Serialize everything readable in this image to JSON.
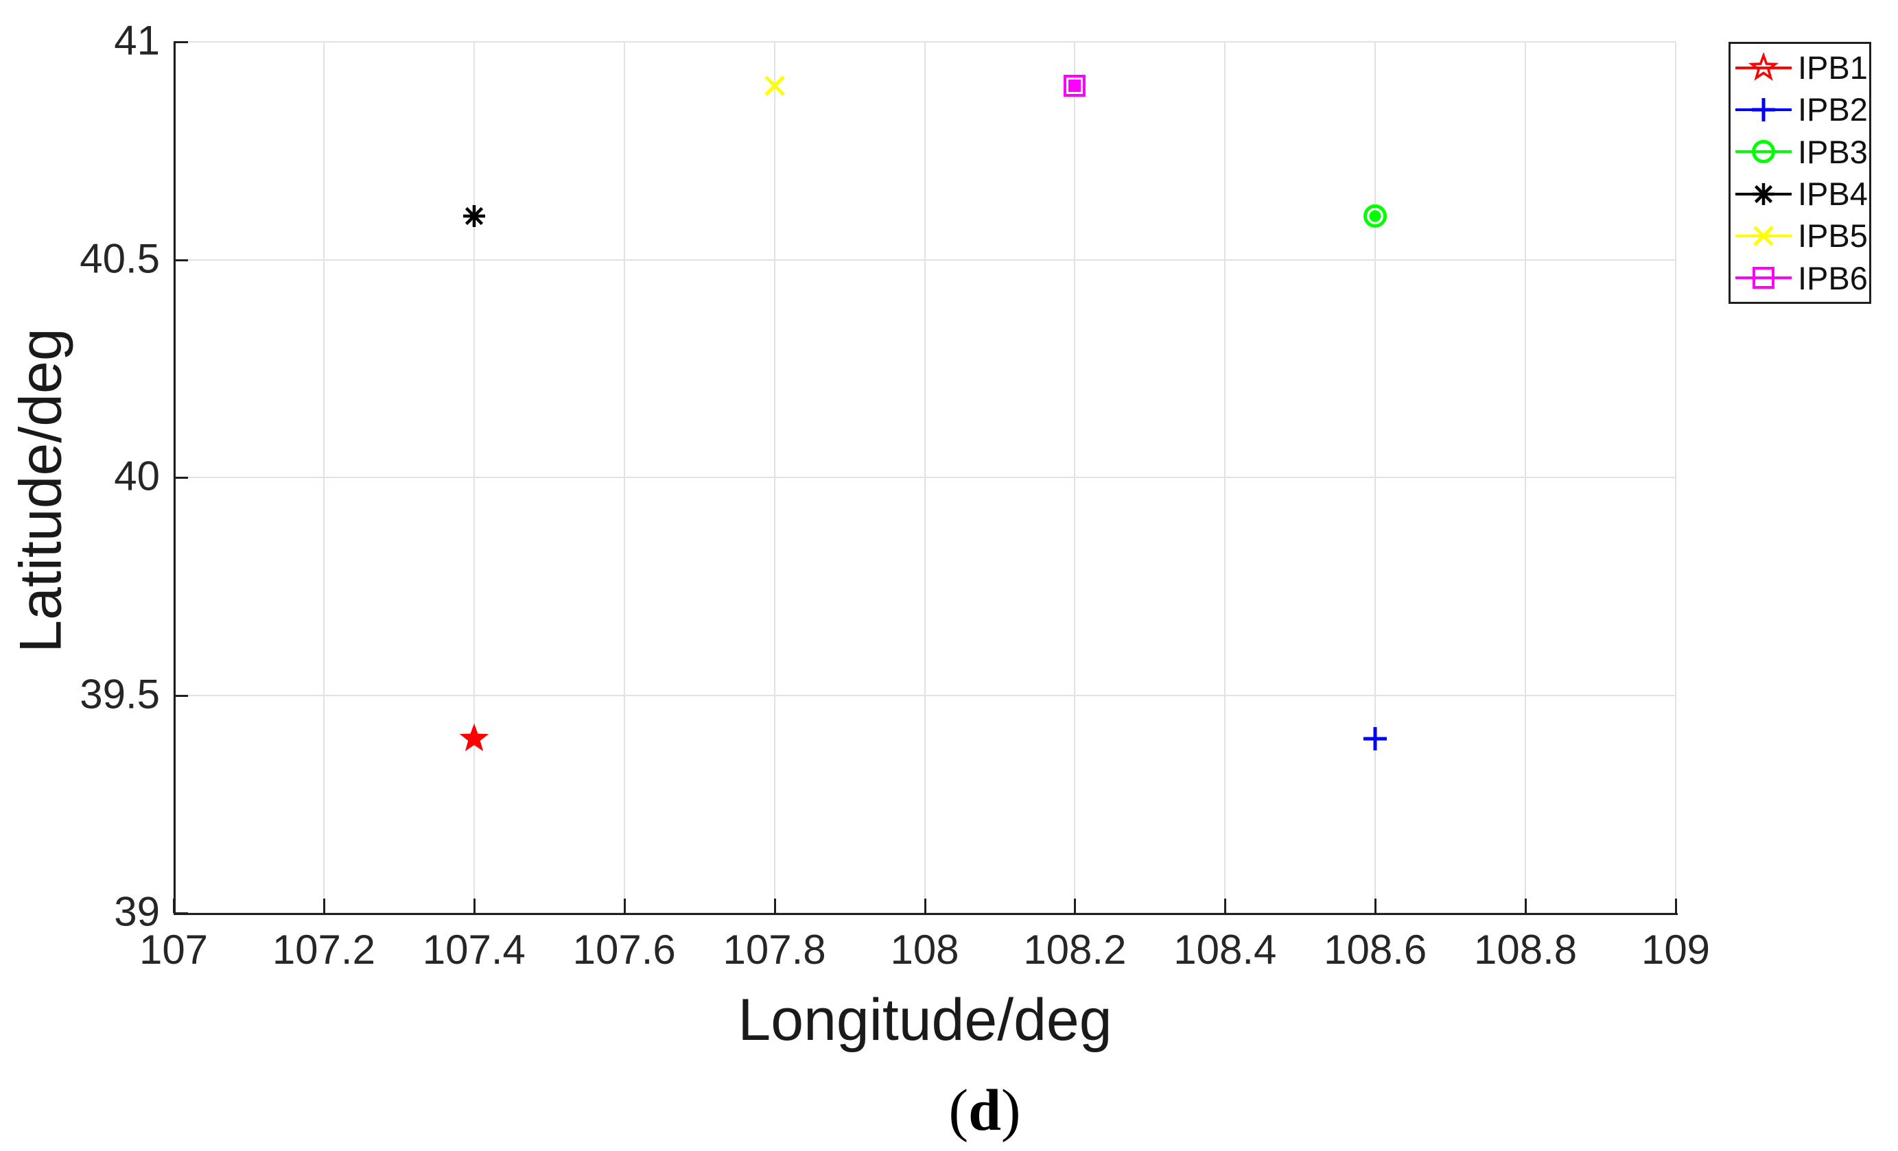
{
  "figure": {
    "caption_open": "(",
    "caption_letter": "d",
    "caption_close": ")"
  },
  "chart_data": {
    "type": "scatter",
    "title": "",
    "xlabel": "Longitude/deg",
    "ylabel": "Latitude/deg",
    "xlim": [
      107,
      109
    ],
    "ylim": [
      39,
      41
    ],
    "xticks": [
      107,
      107.2,
      107.4,
      107.6,
      107.8,
      108,
      108.2,
      108.4,
      108.6,
      108.8,
      109
    ],
    "xtick_labels": [
      "107",
      "107.2",
      "107.4",
      "107.6",
      "107.8",
      "108",
      "108.2",
      "108.4",
      "108.6",
      "108.8",
      "109"
    ],
    "yticks": [
      39,
      39.5,
      40,
      40.5,
      41
    ],
    "ytick_labels": [
      "39",
      "39.5",
      "40",
      "40.5",
      "41"
    ],
    "grid": true,
    "legend_position": "outside-top-right",
    "series": [
      {
        "name": "IPB1",
        "color": "#ff0000",
        "marker": "pentagram-filled",
        "legend_marker": "pentagram-open",
        "points": [
          {
            "x": 107.4,
            "y": 39.4
          }
        ]
      },
      {
        "name": "IPB2",
        "color": "#0000ff",
        "marker": "plus",
        "legend_marker": "plus",
        "points": [
          {
            "x": 108.6,
            "y": 39.4
          }
        ]
      },
      {
        "name": "IPB3",
        "color": "#00ff00",
        "marker": "circle-dot",
        "legend_marker": "circle-open",
        "points": [
          {
            "x": 108.6,
            "y": 40.6
          }
        ]
      },
      {
        "name": "IPB4",
        "color": "#000000",
        "marker": "asterisk",
        "legend_marker": "asterisk",
        "points": [
          {
            "x": 107.4,
            "y": 40.6
          }
        ]
      },
      {
        "name": "IPB5",
        "color": "#ffff00",
        "marker": "x",
        "legend_marker": "x",
        "points": [
          {
            "x": 107.8,
            "y": 40.9
          }
        ]
      },
      {
        "name": "IPB6",
        "color": "#ff00ff",
        "marker": "square-dot",
        "legend_marker": "square-open",
        "points": [
          {
            "x": 108.2,
            "y": 40.9
          }
        ]
      }
    ],
    "colors": {
      "grid": "#e2e2e2",
      "axis": "#1f1f1f",
      "tick_text": "#262626",
      "background": "#ffffff"
    }
  }
}
